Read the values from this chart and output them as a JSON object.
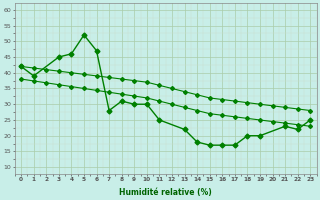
{
  "line1_x": [
    0,
    1,
    3,
    4,
    5,
    6,
    7,
    8,
    9,
    10,
    11,
    13,
    14,
    15,
    16,
    17,
    18,
    19,
    21,
    22,
    23
  ],
  "line1_y": [
    42,
    39,
    45,
    46,
    52,
    47,
    28,
    31,
    30,
    30,
    25,
    22,
    18,
    17,
    17,
    17,
    20,
    20,
    23,
    22,
    25
  ],
  "line2_x": [
    0,
    1,
    2,
    3,
    4,
    5,
    6,
    7,
    8,
    9,
    10,
    11,
    12,
    13,
    14,
    15,
    16,
    17,
    18,
    19,
    20,
    21,
    22,
    23
  ],
  "line2_y": [
    42,
    41.5,
    41,
    40.5,
    40,
    39.5,
    39,
    38.5,
    38,
    37.5,
    37,
    36,
    35,
    34,
    33,
    32,
    31.5,
    31,
    30.5,
    30,
    29.5,
    29,
    28.5,
    28
  ],
  "line3_x": [
    0,
    1,
    2,
    3,
    4,
    5,
    6,
    7,
    8,
    9,
    10,
    11,
    12,
    13,
    14,
    15,
    16,
    17,
    18,
    19,
    20,
    21,
    22,
    23
  ],
  "line3_y": [
    38,
    37.4,
    36.8,
    36.2,
    35.6,
    35,
    34.4,
    33.8,
    33.2,
    32.6,
    32,
    31,
    30,
    29,
    28,
    27,
    26.5,
    26,
    25.5,
    25,
    24.5,
    24,
    23.5,
    23
  ],
  "line_color": "#008000",
  "bg_color": "#c8eee8",
  "grid_color_major": "#aaccaa",
  "grid_color_minor": "#ccddcc",
  "xlabel": "Humidité relative (%)",
  "xlabel_color": "#006400",
  "ylabel_ticks": [
    10,
    15,
    20,
    25,
    30,
    35,
    40,
    45,
    50,
    55,
    60
  ],
  "xlim": [
    -0.3,
    23.3
  ],
  "ylim": [
    8,
    62
  ],
  "xtick_labels": [
    "0",
    "1",
    "2",
    "3",
    "4",
    "5",
    "6",
    "7",
    "8",
    "9",
    "10",
    "11",
    "12",
    "13",
    "14",
    "15",
    "16",
    "17",
    "18",
    "19",
    "20",
    "21",
    "22",
    "23"
  ],
  "marker": "D",
  "marker_size": 2.5,
  "linewidth": 1.0,
  "linewidth2": 0.8
}
